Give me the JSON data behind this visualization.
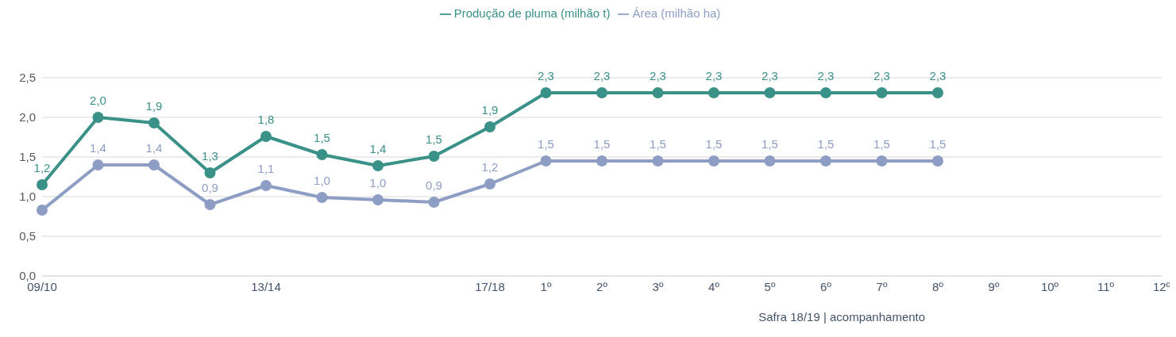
{
  "chart_data": {
    "type": "line",
    "categories": [
      "09/10",
      null,
      null,
      null,
      "13/14",
      null,
      null,
      null,
      "17/18",
      "1º",
      "2º",
      "3º",
      "4º",
      "5º",
      "6º",
      "7º",
      "8º",
      "9º",
      "10º",
      "11º",
      "12º"
    ],
    "series": [
      {
        "name": "Área (milhão ha)",
        "color": "#8e9dc4",
        "values": [
          0.83,
          1.4,
          1.4,
          0.9,
          1.14,
          0.99,
          0.96,
          0.93,
          1.16,
          1.45,
          1.45,
          1.45,
          1.45,
          1.45,
          1.45,
          1.45,
          1.45,
          null,
          null,
          null,
          null
        ],
        "value_labels": [
          null,
          "1,4",
          "1,4",
          "0,9",
          "1,1",
          "1,0",
          "1,0",
          "0,9",
          "1,2",
          "1,5",
          "1,5",
          "1,5",
          "1,5",
          "1,5",
          "1,5",
          "1,5",
          "1,5",
          null,
          null,
          null,
          null
        ]
      },
      {
        "name": "Produção de pluma (milhão t)",
        "color": "#3a9188",
        "values": [
          1.15,
          2.0,
          1.93,
          1.3,
          1.76,
          1.53,
          1.39,
          1.51,
          1.88,
          2.31,
          2.31,
          2.31,
          2.31,
          2.31,
          2.31,
          2.31,
          2.31,
          null,
          null,
          null,
          null
        ],
        "value_labels": [
          "1,2",
          "2,0",
          "1,9",
          "1,3",
          "1,8",
          "1,5",
          "1,4",
          "1,5",
          "1,9",
          "2,3",
          "2,3",
          "2,3",
          "2,3",
          "2,3",
          "2,3",
          "2,3",
          "2,3",
          null,
          null,
          null,
          null
        ]
      }
    ],
    "ylim": [
      0,
      2.5
    ],
    "yticks": [
      {
        "value": 0,
        "label": "0,0"
      },
      {
        "value": 0.5,
        "label": "0,5"
      },
      {
        "value": 1,
        "label": "1,0"
      },
      {
        "value": 1.5,
        "label": "1,5"
      },
      {
        "value": 2,
        "label": "2,0"
      },
      {
        "value": 2.5,
        "label": "2,5"
      }
    ],
    "grid": "y",
    "legend": "top",
    "marker": "circle",
    "line_style": "solid",
    "annotations": [
      "Safra 18/19 | acompanhamento"
    ]
  }
}
